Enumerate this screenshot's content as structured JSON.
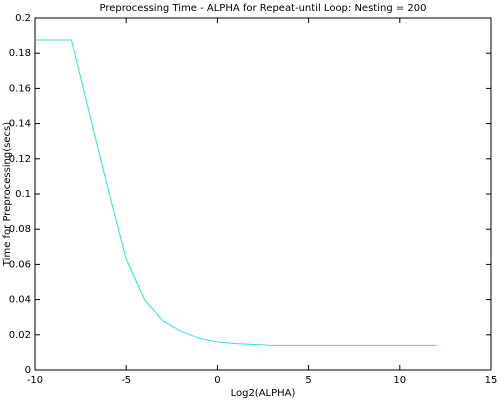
{
  "chart_data": {
    "type": "line",
    "title": "Preprocessing Time - ALPHA for Repeat-until Loop: Nesting = 200",
    "x_label": "Log2(ALPHA)",
    "y_label": "Time for Preprocessing(secs)",
    "series": [
      {
        "color": "#33e0e0",
        "x": [
          -10,
          -9,
          -8,
          -7,
          -6,
          -5,
          -4,
          -3,
          -2,
          -1,
          0,
          1,
          2,
          3,
          4,
          5,
          6,
          7,
          8,
          9,
          10,
          11,
          12
        ],
        "values": [
          0.1875,
          0.1875,
          0.1875,
          0.145,
          0.103,
          0.063,
          0.04,
          0.028,
          0.022,
          0.018,
          0.016,
          0.015,
          0.0145,
          0.014,
          0.014,
          0.014,
          0.014,
          0.014,
          0.014,
          0.014,
          0.014,
          0.014,
          0.014
        ]
      }
    ],
    "xlim": [
      -10,
      15
    ],
    "xticks": [
      -10,
      -5,
      0,
      5,
      10,
      15
    ],
    "ylim": [
      0,
      0.2
    ],
    "yticks": [
      0,
      0.02,
      0.04,
      0.06,
      0.08,
      0.1,
      0.12,
      0.14,
      0.16,
      0.18,
      0.2
    ]
  }
}
